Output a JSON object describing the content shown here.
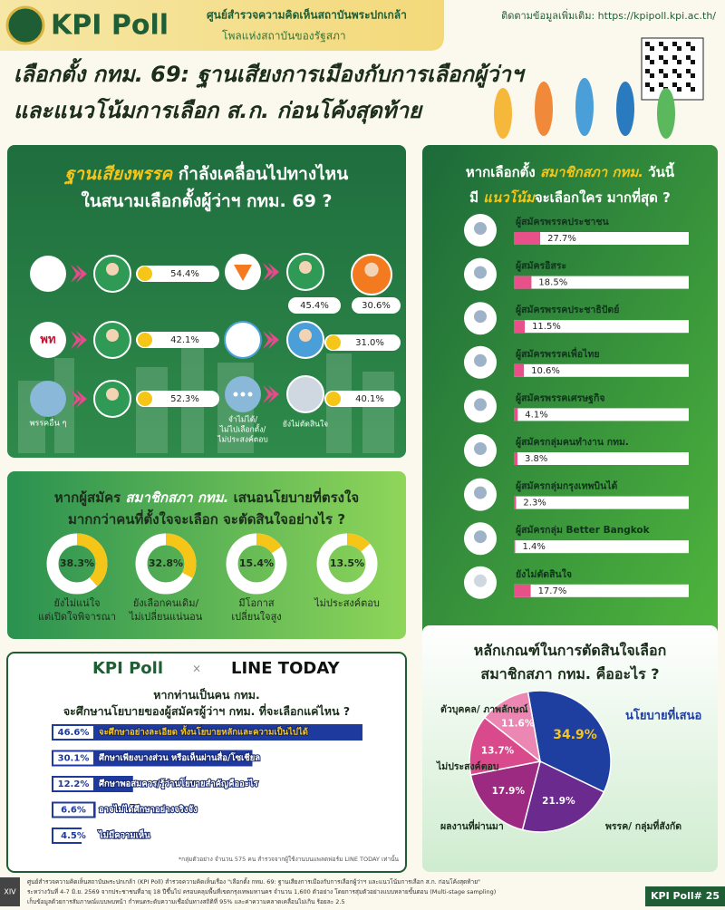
{
  "header": {
    "brand": "KPI Poll",
    "org": "ศูนย์สำรวจความคิดเห็นสถาบันพระปกเกล้า",
    "tagline": "โพลแห่งสถาบันของรัฐสภา",
    "link": "ติดตามข้อมูลเพิ่มเติม: https://kpipoll.kpi.ac.th/"
  },
  "title": [
    "เลือกตั้ง กทม. 69: ฐานเสียงการเมืองกับการเลือกผู้ว่าฯ",
    "และแนวโน้มการเลือก ส.ก. ก่อนโค้งสุดท้าย"
  ],
  "party_base": {
    "title": [
      [
        "ฐานเสียงพรรค",
        " กำลังเคลื่อนไปทางไหน"
      ],
      [
        "ในสนามเลือกตั้งผู้ว่าฯ กทม. 69 ?"
      ]
    ],
    "left": [
      {
        "value": "54.4%"
      },
      {
        "logo": "พท",
        "value": "42.1%"
      },
      {
        "label": "พรรคอื่น ๆ",
        "value": "52.3%"
      }
    ],
    "right": [
      {
        "values": [
          "45.4%",
          "30.6%"
        ]
      },
      {
        "value": "31.0%"
      },
      {
        "label": [
          "จำไม่ได้/",
          "ไม่ไปเลือกตั้ง/",
          "ไม่ประสงค์ตอบ"
        ],
        "target": "ยังไม่ตัดสินใจ",
        "value": "40.1%"
      }
    ]
  },
  "chart_data": [
    {
      "type": "bar",
      "title": [
        [
          "หากเลือกตั้ง ",
          "สมาชิกสภา กทม.",
          " วันนี้"
        ],
        [
          "มี ",
          "แนวโน้ม",
          "จะเลือกใคร มากที่สุด ?"
        ]
      ],
      "categories": [
        "ผู้สมัครพรรคประชาชน",
        "ผู้สมัครอิสระ",
        "ผู้สมัครพรรคประชาธิปัตย์",
        "ผู้สมัครพรรคเพื่อไทย",
        "ผู้สมัครพรรคเศรษฐกิจ",
        "ผู้สมัครกลุ่มคนทำงาน กทม.",
        "ผู้สมัครกลุ่มกรุงเทพบินได้",
        "ผู้สมัครกลุ่ม Better Bangkok",
        "ยังไม่ตัดสินใจ"
      ],
      "values": [
        27.7,
        18.5,
        11.5,
        10.6,
        4.1,
        3.8,
        2.3,
        1.4,
        17.7
      ],
      "value_labels": [
        "27.7%",
        "18.5%",
        "11.5%",
        "10.6%",
        "4.1%",
        "3.8%",
        "2.3%",
        "1.4%",
        "17.7%"
      ],
      "color": "#e8508a"
    },
    {
      "type": "donut",
      "title": [
        [
          "หากผู้สมัคร ",
          "สมาชิกสภา กทม.",
          " เสนอนโยบายที่ตรงใจ"
        ],
        [
          "มากกว่าคนที่ตั้งใจจะเลือก จะตัดสินใจอย่างไร ?"
        ]
      ],
      "categories": [
        [
          "ยังไม่แน่ใจ",
          "แต่เปิดใจพิจารณา"
        ],
        [
          "ยังเลือกคนเดิม/",
          "ไม่เปลี่ยนแน่นอน"
        ],
        [
          "มีโอกาส",
          "เปลี่ยนใจสูง"
        ],
        [
          "ไม่ประสงค์ตอบ"
        ]
      ],
      "values": [
        38.3,
        32.8,
        15.4,
        13.5
      ],
      "value_labels": [
        "38.3%",
        "32.8%",
        "15.4%",
        "13.5%"
      ],
      "color": "#f5c518"
    },
    {
      "type": "bar",
      "partner": "LINE TODAY",
      "title": [
        [
          "หากท่านเป็นคน กทม."
        ],
        [
          "จะศึกษานโยบายของผู้สมัครผู้ว่าฯ กทม. ที่จะเลือกแค่ไหน ?"
        ]
      ],
      "categories": [
        "จะศึกษาอย่างละเอียด ทั้งนโยบายหลักและความเป็นไปได้",
        "ศึกษาเพียงบางส่วน หรือเห็นผ่านสื่อ/โซเชียล",
        "ศึกษาพอสมควร/รู้ว่านโยบายสำคัญคืออะไร",
        "อาจไม่ได้ศึกษาอย่างจริงจัง",
        "ไม่มีความเห็น"
      ],
      "values": [
        46.6,
        30.1,
        12.2,
        6.6,
        4.5
      ],
      "value_labels": [
        "46.6%",
        "30.1%",
        "12.2%",
        "6.6%",
        "4.5%"
      ],
      "color": "#1f3a9e",
      "note": "*กลุ่มตัวอย่าง จำนวน 575 คน สำรวจจากผู้ใช้งานบนแพลตฟอร์ม LINE TODAY เท่านั้น"
    },
    {
      "type": "pie",
      "title": [
        [
          "หลักเกณฑ์ในการตัดสินใจเลือก"
        ],
        [
          "สมาชิกสภา กทม. คืออะไร ?"
        ]
      ],
      "categories": [
        "นโยบายที่เสนอ",
        "พรรค/ กลุ่มที่สังกัด",
        "ผลงานที่ผ่านมา",
        "ไม่ประสงค์ตอบ",
        "ตัวบุคคล/ ภาพลักษณ์"
      ],
      "values": [
        34.9,
        21.9,
        17.9,
        13.7,
        11.6
      ],
      "value_labels": [
        "34.9%",
        "21.9%",
        "17.9%",
        "13.7%",
        "11.6%"
      ],
      "colors": [
        "#1e3fa0",
        "#6a2a8e",
        "#9c2a80",
        "#d94a8c",
        "#ec86b2"
      ]
    }
  ],
  "footer": {
    "code": "XIV",
    "lines": [
      "ศูนย์สำรวจความคิดเห็นสถาบันพระปกเกล้า (KPI Poll) สำรวจความคิดเห็นเรื่อง \"เลือกตั้ง กทม. 69: ฐานเสียงการเมืองกับการเลือกผู้ว่าฯ และแนวโน้มการเลือก ส.ก. ก่อนโค้งสุดท้าย\"",
      "ระหว่างวันที่ 4-7 มิ.ย. 2569 จากประชาชนที่อายุ 18 ปีขึ้นไป ครอบคลุมพื้นที่เขตกรุงเทพมหานคร จำนวน 1,600 ตัวอย่าง โดยการสุ่มตัวอย่างแบบหลายขั้นตอน (Multi-stage sampling)",
      "เก็บข้อมูลด้วยการสัมภาษณ์แบบพบหน้า กำหนดระดับความเชื่อมั่นทางสถิติที่ 95% และค่าความคลาดเคลื่อนไม่เกิน ร้อยละ 2.5"
    ],
    "tag": "KPI Poll# 25"
  }
}
